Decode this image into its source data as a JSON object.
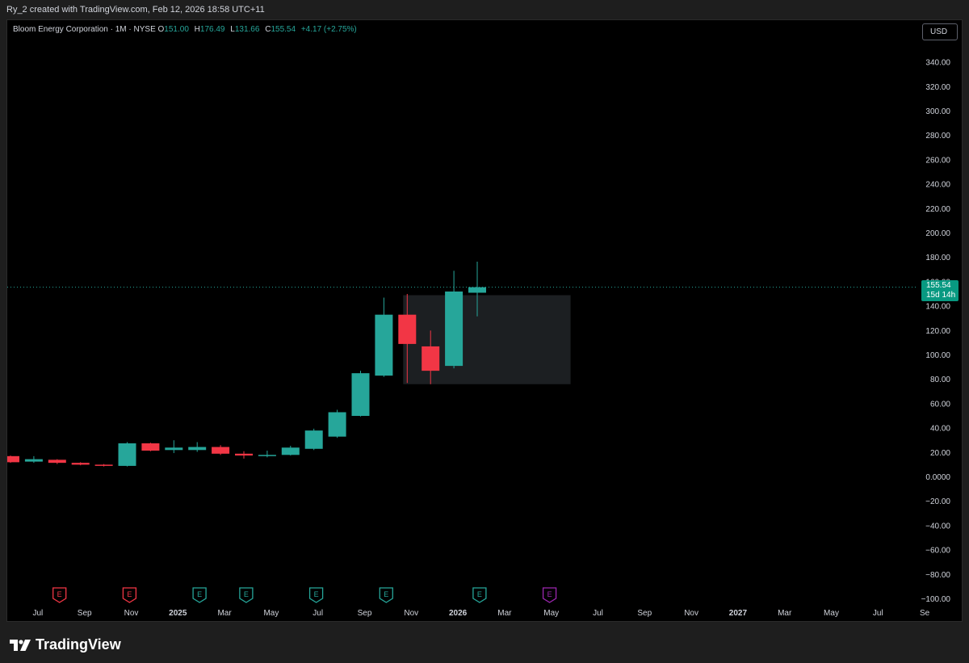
{
  "header": {
    "caption": "Ry_2 created with TradingView.com, Feb 12, 2026 18:58 UTC+11"
  },
  "legend": {
    "symbol": "Bloom Energy Corporation · 1M · NYSE",
    "o_label": "O",
    "o_value": "151.00",
    "h_label": "H",
    "h_value": "176.49",
    "l_label": "L",
    "l_value": "131.66",
    "c_label": "C",
    "c_value": "155.54",
    "change": "+4.17 (+2.75%)"
  },
  "currency_button": "USD",
  "last_price": {
    "value": "155.54",
    "countdown": "15d 14h"
  },
  "footer": {
    "brand": "TradingView"
  },
  "colors": {
    "up": "#26a69a",
    "down": "#f23645",
    "axis_text": "#d1d4dc",
    "badge": "#089981",
    "earnings_up": "#26a69a",
    "earnings_down": "#f23645",
    "earnings_future": "#9c27b0"
  },
  "chart_data": {
    "type": "candlestick",
    "ylim": [
      -100,
      340
    ],
    "y_ticks": [
      {
        "value": 340,
        "label": "340.00"
      },
      {
        "value": 320,
        "label": "320.00"
      },
      {
        "value": 300,
        "label": "300.00"
      },
      {
        "value": 280,
        "label": "280.00"
      },
      {
        "value": 260,
        "label": "260.00"
      },
      {
        "value": 240,
        "label": "240.00"
      },
      {
        "value": 220,
        "label": "220.00"
      },
      {
        "value": 200,
        "label": "200.00"
      },
      {
        "value": 180,
        "label": "180.00"
      },
      {
        "value": 160,
        "label": "160.00"
      },
      {
        "value": 140,
        "label": "140.00"
      },
      {
        "value": 120,
        "label": "120.00"
      },
      {
        "value": 100,
        "label": "100.00"
      },
      {
        "value": 80,
        "label": "80.00"
      },
      {
        "value": 60,
        "label": "60.00"
      },
      {
        "value": 40,
        "label": "40.00"
      },
      {
        "value": 20,
        "label": "20.00"
      },
      {
        "value": 0,
        "label": "0.0000"
      },
      {
        "value": -20,
        "label": "−20.00"
      },
      {
        "value": -40,
        "label": "−40.00"
      },
      {
        "value": -60,
        "label": "−60.00"
      },
      {
        "value": -80,
        "label": "−80.00"
      },
      {
        "value": -100,
        "label": "−100.00"
      }
    ],
    "x_ticks": [
      {
        "index": 1,
        "label": "Jul"
      },
      {
        "index": 3,
        "label": "Sep"
      },
      {
        "index": 5,
        "label": "Nov"
      },
      {
        "index": 7,
        "label": "2025",
        "bold": true
      },
      {
        "index": 9,
        "label": "Mar"
      },
      {
        "index": 11,
        "label": "May"
      },
      {
        "index": 13,
        "label": "Jul"
      },
      {
        "index": 15,
        "label": "Sep"
      },
      {
        "index": 17,
        "label": "Nov"
      },
      {
        "index": 19,
        "label": "2026",
        "bold": true
      },
      {
        "index": 21,
        "label": "Mar"
      },
      {
        "index": 23,
        "label": "May"
      },
      {
        "index": 25,
        "label": "Jul"
      },
      {
        "index": 27,
        "label": "Sep"
      },
      {
        "index": 29,
        "label": "Nov"
      },
      {
        "index": 31,
        "label": "2027",
        "bold": true
      },
      {
        "index": 33,
        "label": "Mar"
      },
      {
        "index": 35,
        "label": "May"
      },
      {
        "index": 37,
        "label": "Jul"
      },
      {
        "index": 39,
        "label": "Se"
      }
    ],
    "candles": [
      {
        "i": 0,
        "o": 17,
        "h": 17.5,
        "c": 12,
        "l": 11.5
      },
      {
        "i": 1,
        "o": 12.5,
        "h": 17,
        "c": 14.5,
        "l": 11.5
      },
      {
        "i": 2,
        "o": 14,
        "h": 14.5,
        "c": 11.5,
        "l": 10.5
      },
      {
        "i": 3,
        "o": 11.5,
        "h": 12,
        "c": 10,
        "l": 9.5
      },
      {
        "i": 4,
        "o": 10,
        "h": 10.5,
        "c": 9,
        "l": 8.5
      },
      {
        "i": 5,
        "o": 9,
        "h": 28.5,
        "c": 27.5,
        "l": 8.5
      },
      {
        "i": 6,
        "o": 27.5,
        "h": 28,
        "c": 21.5,
        "l": 21
      },
      {
        "i": 7,
        "o": 22,
        "h": 30,
        "c": 24,
        "l": 19.5
      },
      {
        "i": 8,
        "o": 22,
        "h": 28.5,
        "c": 24.5,
        "l": 20.5
      },
      {
        "i": 9,
        "o": 24.5,
        "h": 26,
        "c": 19,
        "l": 18
      },
      {
        "i": 10,
        "o": 19,
        "h": 21,
        "c": 17.5,
        "l": 15
      },
      {
        "i": 11,
        "o": 17.5,
        "h": 21.5,
        "c": 18,
        "l": 16
      },
      {
        "i": 12,
        "o": 18,
        "h": 25.5,
        "c": 24,
        "l": 17.5
      },
      {
        "i": 13,
        "o": 23,
        "h": 39.5,
        "c": 38,
        "l": 22
      },
      {
        "i": 14,
        "o": 33,
        "h": 55,
        "c": 53,
        "l": 32
      },
      {
        "i": 15,
        "o": 50,
        "h": 87,
        "c": 85,
        "l": 49.5
      },
      {
        "i": 16,
        "o": 83,
        "h": 147,
        "c": 133,
        "l": 82
      },
      {
        "i": 17,
        "o": 133,
        "h": 150,
        "c": 109,
        "l": 77
      },
      {
        "i": 18,
        "o": 107,
        "h": 120,
        "c": 87,
        "l": 76
      },
      {
        "i": 19,
        "o": 91,
        "h": 169,
        "c": 152,
        "l": 89
      },
      {
        "i": 20,
        "o": 151,
        "h": 176.49,
        "c": 155.54,
        "l": 131.66
      }
    ],
    "box": {
      "x0": 17.0,
      "x1": 24.0,
      "y0": 76,
      "y1": 149
    },
    "last_price_line": 155.54,
    "earnings": [
      {
        "i": 2.1,
        "kind": "down",
        "label": "E"
      },
      {
        "i": 5.1,
        "kind": "down",
        "label": "E"
      },
      {
        "i": 8.1,
        "kind": "up",
        "label": "E"
      },
      {
        "i": 10.1,
        "kind": "up",
        "label": "E"
      },
      {
        "i": 13.1,
        "kind": "up",
        "label": "E"
      },
      {
        "i": 16.1,
        "kind": "up",
        "label": "E"
      },
      {
        "i": 20.1,
        "kind": "up",
        "label": "E"
      },
      {
        "i": 23.1,
        "kind": "future",
        "label": "E"
      }
    ]
  }
}
